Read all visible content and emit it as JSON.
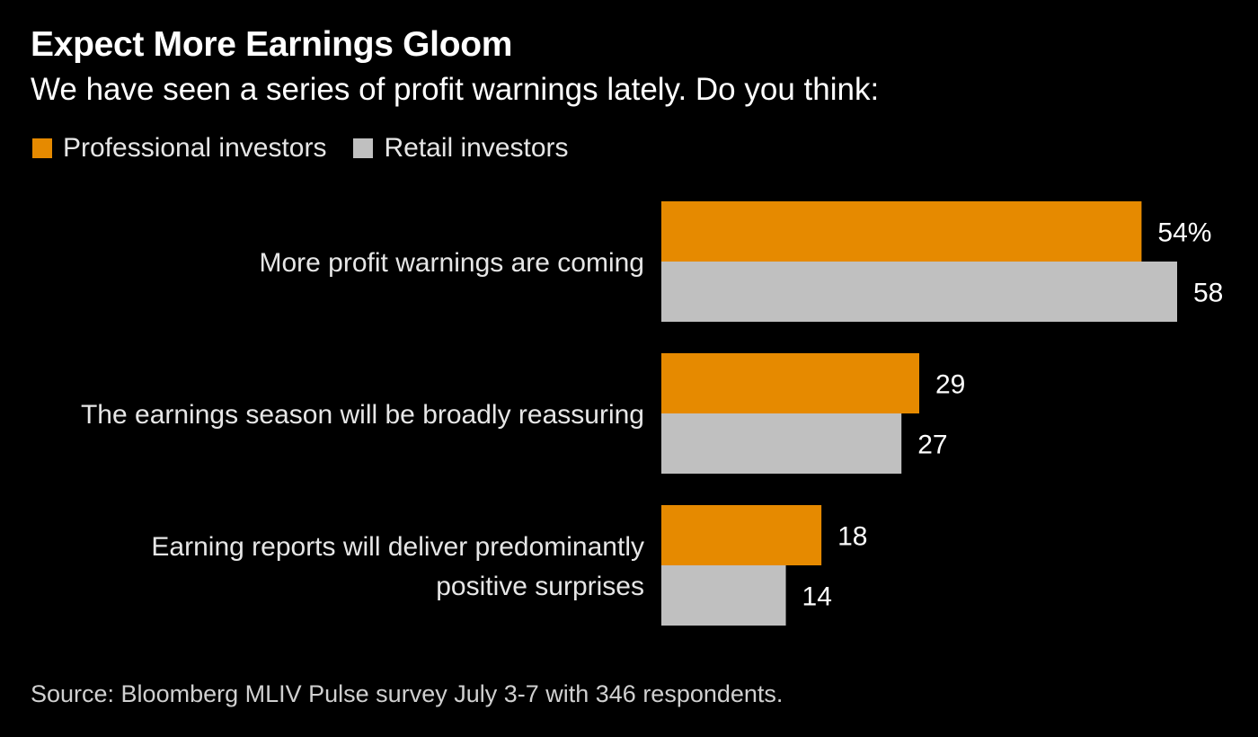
{
  "title": "Expect More Earnings Gloom",
  "subtitle": "We have seen a series of profit warnings lately. Do you think:",
  "legend": [
    {
      "label": "Professional investors",
      "color": "#e68a00"
    },
    {
      "label": "Retail investors",
      "color": "#c0c0c0"
    }
  ],
  "chart_data": {
    "type": "bar",
    "orientation": "horizontal",
    "categories": [
      [
        "More profit warnings are coming"
      ],
      [
        "The earnings season will be broadly reassuring"
      ],
      [
        "Earning reports will deliver predominantly",
        "positive surprises"
      ]
    ],
    "series": [
      {
        "name": "Professional investors",
        "color": "#e68a00",
        "values": [
          54,
          29,
          18
        ],
        "labels": [
          "54%",
          "29",
          "18"
        ]
      },
      {
        "name": "Retail investors",
        "color": "#c0c0c0",
        "values": [
          58,
          27,
          14
        ],
        "labels": [
          "58",
          "27",
          "14"
        ]
      }
    ],
    "xlim": [
      0,
      58
    ],
    "grid": false,
    "legend_position": "top-left"
  },
  "source": "Source: Bloomberg MLIV Pulse survey July 3-7 with 346 respondents."
}
